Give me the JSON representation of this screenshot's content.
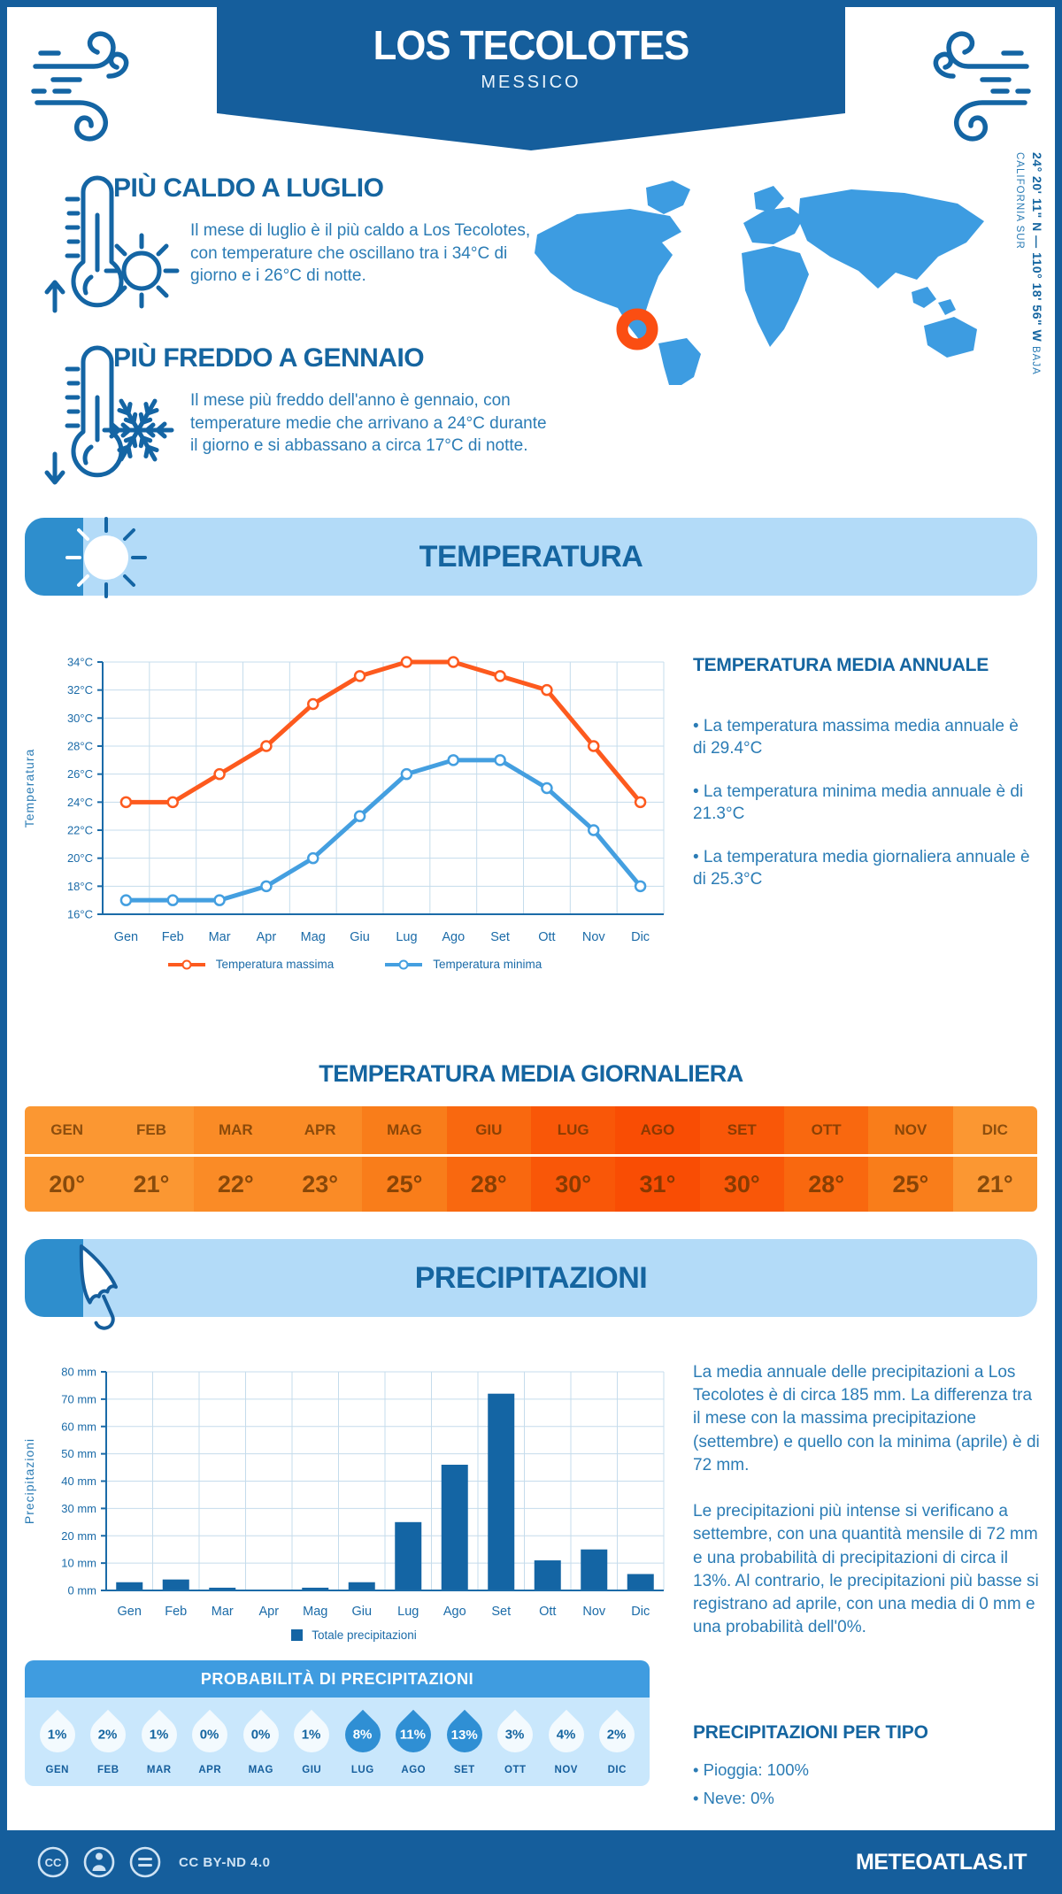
{
  "colors": {
    "primary": "#155e9c",
    "heading": "#1565a0",
    "body_text": "#2b7cb5",
    "axis_text": "#1b6ba8",
    "grid": "#c5dcec",
    "light_banner": "#b3dbf8",
    "banner_icon_bg": "#2e8ecd",
    "map_blue": "#3d9ce1",
    "marker_orange": "#fb4e12",
    "line_max": "#fd5a1e",
    "line_min": "#449fe0",
    "bar_blue": "#1465a4",
    "prob_header": "#3f9ce0",
    "prob_body": "#c9e7fc",
    "drop_highlight": "#2f8fd4"
  },
  "header": {
    "title": "LOS TECOLOTES",
    "subtitle": "MESSICO"
  },
  "hot": {
    "title": "PIÙ CALDO A LUGLIO",
    "text": "Il mese di luglio è il più caldo a Los Tecolotes, con temperature che oscillano tra i 34°C di giorno e i 26°C di notte."
  },
  "cold": {
    "title": "PIÙ FREDDO A GENNAIO",
    "text": "Il mese più freddo dell'anno è gennaio, con temperature medie che arrivano a 24°C durante il giorno e si abbassano a circa 17°C di notte."
  },
  "map": {
    "coordinates": "24° 20' 11\" N — 110° 18' 56\" W",
    "region": "BAJA CALIFORNIA SUR"
  },
  "temperature": {
    "banner": "TEMPERATURA",
    "annual": {
      "heading": "TEMPERATURA MEDIA ANNUALE",
      "bullets": [
        "• La temperatura massima media annuale è di 29.4°C",
        "• La temperatura minima media annuale è di 21.3°C",
        "• La temperatura media giornaliera annuale è di 25.3°C"
      ]
    },
    "daily": {
      "heading": "TEMPERATURA MEDIA GIORNALIERA",
      "cells": [
        {
          "label": "GEN",
          "value": "20°",
          "bg": "#fb9732"
        },
        {
          "label": "FEB",
          "value": "21°",
          "bg": "#fb9732"
        },
        {
          "label": "MAR",
          "value": "22°",
          "bg": "#fa8b26"
        },
        {
          "label": "APR",
          "value": "23°",
          "bg": "#fa8b26"
        },
        {
          "label": "MAG",
          "value": "25°",
          "bg": "#f97d1a"
        },
        {
          "label": "GIU",
          "value": "28°",
          "bg": "#f9680f"
        },
        {
          "label": "LUG",
          "value": "30°",
          "bg": "#f95708"
        },
        {
          "label": "AGO",
          "value": "31°",
          "bg": "#f94d04"
        },
        {
          "label": "SET",
          "value": "30°",
          "bg": "#f95708"
        },
        {
          "label": "OTT",
          "value": "28°",
          "bg": "#f9680f"
        },
        {
          "label": "NOV",
          "value": "25°",
          "bg": "#f97d1a"
        },
        {
          "label": "DIC",
          "value": "21°",
          "bg": "#fb9732"
        }
      ]
    }
  },
  "precipitation": {
    "banner": "PRECIPITAZIONI",
    "paragraphs": [
      "La media annuale delle precipitazioni a Los Tecolotes è di circa 185 mm. La differenza tra il mese con la massima precipitazione (settembre) e quello con la minima (aprile) è di 72 mm.",
      "Le precipitazioni più intense si verificano a settembre, con una quantità mensile di 72 mm e una probabilità di precipitazioni di circa il 13%. Al contrario, le precipitazioni più basse si registrano ad aprile, con una media di 0 mm e una probabilità dell'0%."
    ]
  },
  "probability": {
    "heading": "PROBABILITÀ DI PRECIPITAZIONI",
    "items": [
      {
        "pct": "1%",
        "month": "GEN",
        "highlight": false
      },
      {
        "pct": "2%",
        "month": "FEB",
        "highlight": false
      },
      {
        "pct": "1%",
        "month": "MAR",
        "highlight": false
      },
      {
        "pct": "0%",
        "month": "APR",
        "highlight": false
      },
      {
        "pct": "0%",
        "month": "MAG",
        "highlight": false
      },
      {
        "pct": "1%",
        "month": "GIU",
        "highlight": false
      },
      {
        "pct": "8%",
        "month": "LUG",
        "highlight": true
      },
      {
        "pct": "11%",
        "month": "AGO",
        "highlight": true
      },
      {
        "pct": "13%",
        "month": "SET",
        "highlight": true
      },
      {
        "pct": "3%",
        "month": "OTT",
        "highlight": false
      },
      {
        "pct": "4%",
        "month": "NOV",
        "highlight": false
      },
      {
        "pct": "2%",
        "month": "DIC",
        "highlight": false
      }
    ]
  },
  "types": {
    "heading": "PRECIPITAZIONI PER TIPO",
    "bullets": [
      "• Pioggia: 100%",
      "• Neve: 0%"
    ]
  },
  "footer": {
    "license": "CC BY-ND 4.0",
    "site": "METEOATLAS.IT"
  },
  "chart_data": [
    {
      "type": "line",
      "title": "",
      "ylabel": "Temperatura",
      "categories": [
        "Gen",
        "Feb",
        "Mar",
        "Apr",
        "Mag",
        "Giu",
        "Lug",
        "Ago",
        "Set",
        "Ott",
        "Nov",
        "Dic"
      ],
      "series": [
        {
          "name": "Temperatura massima",
          "color": "#fd5a1e",
          "values": [
            24,
            24,
            26,
            28,
            31,
            33,
            34,
            34,
            33,
            32,
            28,
            24
          ]
        },
        {
          "name": "Temperatura minima",
          "color": "#449fe0",
          "values": [
            17,
            17,
            17,
            18,
            20,
            23,
            26,
            27,
            27,
            25,
            22,
            18
          ]
        }
      ],
      "ylim": [
        16,
        34
      ],
      "ytick_step": 2,
      "ytick_suffix": "°C",
      "grid": true,
      "legend_position": "bottom"
    },
    {
      "type": "bar",
      "title": "",
      "ylabel": "Precipitazioni",
      "categories": [
        "Gen",
        "Feb",
        "Mar",
        "Apr",
        "Mag",
        "Giu",
        "Lug",
        "Ago",
        "Set",
        "Ott",
        "Nov",
        "Dic"
      ],
      "values": [
        3,
        4,
        1,
        0,
        1,
        3,
        25,
        46,
        72,
        11,
        15,
        6
      ],
      "ylim": [
        0,
        80
      ],
      "ytick_step": 10,
      "ytick_suffix": " mm",
      "color": "#1465a4",
      "legend": "Totale precipitazioni",
      "grid": true,
      "legend_position": "bottom"
    }
  ]
}
